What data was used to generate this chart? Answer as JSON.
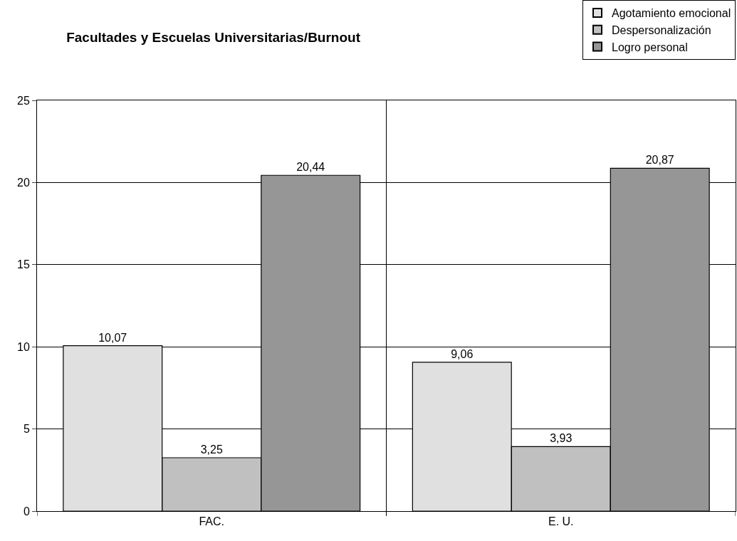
{
  "chart_data": {
    "type": "bar",
    "title": "Facultades y Escuelas Universitarias/Burnout",
    "categories": [
      "FAC.",
      "E. U."
    ],
    "series": [
      {
        "name": "Agotamiento emocional",
        "color": "#e0e0e0",
        "values": [
          10.07,
          9.06
        ],
        "value_labels": [
          "10,07",
          "9,06"
        ]
      },
      {
        "name": "Despersonalización",
        "color": "#c0c0c0",
        "values": [
          3.25,
          3.93
        ],
        "value_labels": [
          "3,25",
          "3,93"
        ]
      },
      {
        "name": "Logro personal",
        "color": "#969696",
        "values": [
          20.44,
          20.87
        ],
        "value_labels": [
          "20,44",
          "20,87"
        ]
      }
    ],
    "ylim": [
      0,
      25
    ],
    "yticks": [
      0,
      5,
      10,
      15,
      20,
      25
    ],
    "grid": true,
    "legend": "top right"
  }
}
